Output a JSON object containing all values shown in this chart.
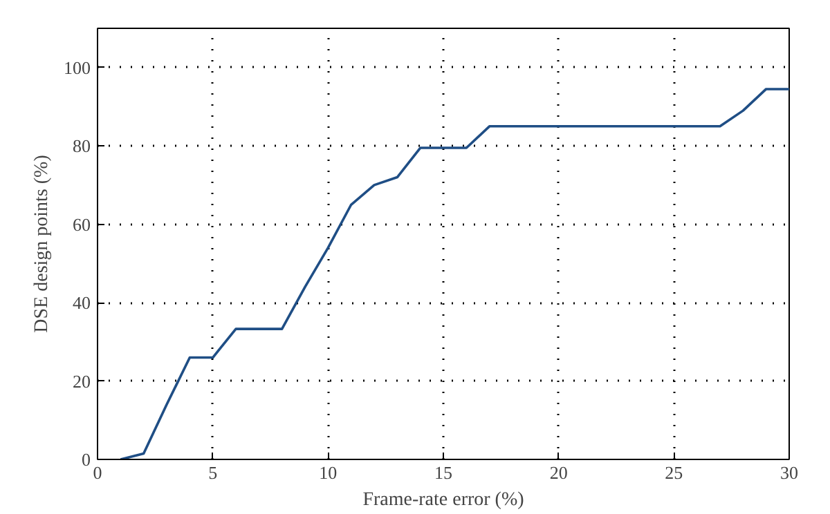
{
  "chart_data": {
    "type": "line",
    "xlabel": "Frame-rate error (%)",
    "ylabel": "DSE design points (%)",
    "x": [
      1,
      2,
      3,
      4,
      5,
      6,
      7,
      8,
      9,
      10,
      11,
      12,
      13,
      14,
      15,
      16,
      17,
      18,
      19,
      20,
      21,
      22,
      23,
      24,
      25,
      26,
      27,
      28,
      29,
      30
    ],
    "series": [
      {
        "color": "#1f4e85",
        "values": [
          0,
          1.5,
          14,
          26,
          26,
          33.3,
          33.3,
          33.3,
          44,
          54,
          65,
          70,
          72,
          79.5,
          79.5,
          79.5,
          85,
          85,
          85,
          85,
          85,
          85,
          85,
          85,
          85,
          85,
          85,
          89,
          94.5,
          94.5
        ]
      }
    ],
    "xlim": [
      0,
      30
    ],
    "ylim": [
      0,
      110
    ],
    "xticks": [
      0,
      5,
      10,
      15,
      20,
      25,
      30
    ],
    "yticks": [
      0,
      20,
      40,
      60,
      80,
      100
    ],
    "grid": true,
    "line_style": "solid",
    "marker": "none"
  }
}
